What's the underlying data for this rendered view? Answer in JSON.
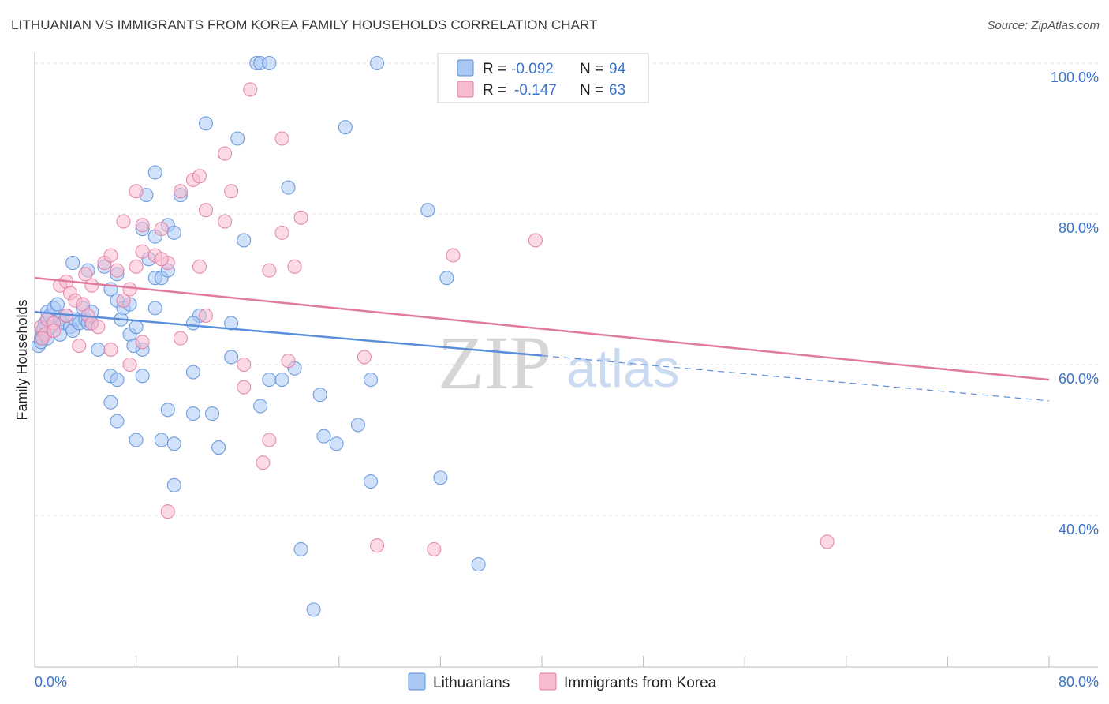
{
  "title": "LITHUANIAN VS IMMIGRANTS FROM KOREA FAMILY HOUSEHOLDS CORRELATION CHART",
  "source": "Source: ZipAtlas.com",
  "watermark": {
    "zip": "ZIP",
    "atlas": "atlas"
  },
  "legend": {
    "r_label": "R =",
    "n_label": "N =",
    "items": [
      {
        "name": "Lithuanians",
        "r": "-0.092",
        "n": "94",
        "fill": "#aac8f4",
        "stroke": "#5b8ed8"
      },
      {
        "name": "Immigrants from Korea",
        "r": "-0.147",
        "n": "63",
        "fill": "#f7bcd0",
        "stroke": "#e07aa0"
      }
    ]
  },
  "chart_data": {
    "type": "scatter",
    "title": "LITHUANIAN VS IMMIGRANTS FROM KOREA FAMILY HOUSEHOLDS CORRELATION CHART",
    "xlabel": "",
    "ylabel": "Family Households",
    "xlim": [
      0,
      80
    ],
    "ylim": [
      20,
      102
    ],
    "x_tick_labels": [
      {
        "value": 0,
        "label": "0.0%"
      },
      {
        "value": 80,
        "label": "80.0%"
      }
    ],
    "y_tick_labels": [
      {
        "value": 40,
        "label": "40.0%"
      },
      {
        "value": 60,
        "label": "60.0%"
      },
      {
        "value": 80,
        "label": "80.0%"
      },
      {
        "value": 100,
        "label": "100.0%"
      }
    ],
    "series": [
      {
        "name": "Lithuanians",
        "color": "#5b8ed8",
        "fill": "#aac8f4",
        "trend": {
          "x0": 0,
          "y0": 67.0,
          "x1": 40,
          "y1": 61.2,
          "dash_to_x": 80,
          "dash_to_y": 55.2
        },
        "points": [
          [
            0.3,
            62.5
          ],
          [
            0.5,
            63.5
          ],
          [
            0.6,
            64.5
          ],
          [
            0.8,
            65.5
          ],
          [
            1.0,
            67.0
          ],
          [
            1.2,
            66.5
          ],
          [
            1.3,
            65.0
          ],
          [
            1.5,
            67.5
          ],
          [
            1.8,
            68.0
          ],
          [
            2.0,
            66.0
          ],
          [
            2.2,
            65.5
          ],
          [
            2.5,
            66.5
          ],
          [
            2.8,
            65.0
          ],
          [
            3.0,
            64.5
          ],
          [
            3.2,
            66.0
          ],
          [
            3.5,
            65.5
          ],
          [
            3.8,
            67.5
          ],
          [
            4.0,
            66.0
          ],
          [
            4.2,
            65.5
          ],
          [
            4.5,
            67.0
          ],
          [
            4.5,
            65.5
          ],
          [
            3.0,
            73.5
          ],
          [
            4.2,
            72.5
          ],
          [
            5.5,
            73.0
          ],
          [
            6.0,
            70.0
          ],
          [
            6.5,
            68.5
          ],
          [
            7.0,
            67.5
          ],
          [
            6.8,
            66.0
          ],
          [
            7.5,
            64.0
          ],
          [
            8.5,
            62.0
          ],
          [
            9.0,
            74.0
          ],
          [
            9.5,
            71.5
          ],
          [
            10.0,
            71.5
          ],
          [
            10.5,
            72.5
          ],
          [
            8.5,
            78.0
          ],
          [
            9.5,
            77.0
          ],
          [
            10.5,
            78.5
          ],
          [
            11.0,
            77.5
          ],
          [
            8.8,
            82.5
          ],
          [
            9.5,
            85.5
          ],
          [
            11.5,
            82.5
          ],
          [
            13.0,
            66.5
          ],
          [
            12.5,
            65.5
          ],
          [
            15.5,
            65.5
          ],
          [
            15.5,
            61.0
          ],
          [
            12.5,
            59.0
          ],
          [
            6.0,
            58.5
          ],
          [
            6.5,
            58.0
          ],
          [
            8.5,
            58.5
          ],
          [
            10.5,
            54.0
          ],
          [
            6.0,
            55.0
          ],
          [
            6.5,
            52.5
          ],
          [
            8.0,
            50.0
          ],
          [
            10.0,
            50.0
          ],
          [
            11.0,
            49.5
          ],
          [
            12.5,
            53.5
          ],
          [
            14.0,
            53.5
          ],
          [
            14.5,
            49.0
          ],
          [
            17.8,
            54.5
          ],
          [
            18.5,
            58.0
          ],
          [
            19.5,
            58.0
          ],
          [
            20.5,
            59.5
          ],
          [
            22.5,
            56.0
          ],
          [
            22.8,
            50.5
          ],
          [
            23.8,
            49.5
          ],
          [
            25.5,
            52.0
          ],
          [
            26.5,
            58.0
          ],
          [
            26.5,
            44.5
          ],
          [
            32.0,
            45.0
          ],
          [
            35.0,
            33.5
          ],
          [
            22.0,
            27.5
          ],
          [
            21.0,
            35.5
          ],
          [
            11.0,
            44.0
          ],
          [
            16.5,
            76.5
          ],
          [
            20.0,
            83.5
          ],
          [
            13.5,
            92.0
          ],
          [
            16.0,
            90.0
          ],
          [
            24.5,
            91.5
          ],
          [
            17.5,
            100.0
          ],
          [
            17.8,
            100.0
          ],
          [
            18.5,
            100.0
          ],
          [
            27.0,
            100.0
          ],
          [
            31.0,
            80.5
          ],
          [
            32.5,
            71.5
          ],
          [
            6.5,
            72.0
          ],
          [
            7.5,
            68.0
          ],
          [
            8.0,
            65.0
          ],
          [
            2.0,
            64.0
          ],
          [
            0.5,
            63.0
          ],
          [
            1.0,
            63.5
          ],
          [
            0.7,
            64.8
          ],
          [
            5.0,
            62.0
          ],
          [
            9.5,
            67.5
          ],
          [
            7.8,
            62.5
          ]
        ]
      },
      {
        "name": "Immigrants from Korea",
        "color": "#e07aa0",
        "fill": "#f7bcd0",
        "trend": {
          "x0": 0,
          "y0": 71.5,
          "x1": 80,
          "y1": 58.0
        },
        "points": [
          [
            0.5,
            65.0
          ],
          [
            0.8,
            64.0
          ],
          [
            1.0,
            66.0
          ],
          [
            1.5,
            65.5
          ],
          [
            2.0,
            70.5
          ],
          [
            2.5,
            71.0
          ],
          [
            2.8,
            69.5
          ],
          [
            3.2,
            68.5
          ],
          [
            3.8,
            68.0
          ],
          [
            4.2,
            66.5
          ],
          [
            4.5,
            65.5
          ],
          [
            4.0,
            72.0
          ],
          [
            4.5,
            70.5
          ],
          [
            5.5,
            73.5
          ],
          [
            6.0,
            74.5
          ],
          [
            6.5,
            72.5
          ],
          [
            7.0,
            68.5
          ],
          [
            7.5,
            70.0
          ],
          [
            8.0,
            73.0
          ],
          [
            8.5,
            75.0
          ],
          [
            9.5,
            74.5
          ],
          [
            10.5,
            73.5
          ],
          [
            10.0,
            74.0
          ],
          [
            7.0,
            79.0
          ],
          [
            8.5,
            78.5
          ],
          [
            10.0,
            78.0
          ],
          [
            8.0,
            83.0
          ],
          [
            11.5,
            83.0
          ],
          [
            12.5,
            84.5
          ],
          [
            13.0,
            85.0
          ],
          [
            13.5,
            80.5
          ],
          [
            15.0,
            79.0
          ],
          [
            15.5,
            83.0
          ],
          [
            13.0,
            73.0
          ],
          [
            18.5,
            72.5
          ],
          [
            19.5,
            77.5
          ],
          [
            20.5,
            73.0
          ],
          [
            21.0,
            79.5
          ],
          [
            15.0,
            88.0
          ],
          [
            19.5,
            90.0
          ],
          [
            17.0,
            96.5
          ],
          [
            13.5,
            66.5
          ],
          [
            11.5,
            63.5
          ],
          [
            8.5,
            63.0
          ],
          [
            7.5,
            60.0
          ],
          [
            6.0,
            62.0
          ],
          [
            16.5,
            60.0
          ],
          [
            16.5,
            57.0
          ],
          [
            20.0,
            60.5
          ],
          [
            26.0,
            61.0
          ],
          [
            18.5,
            50.0
          ],
          [
            18.0,
            47.0
          ],
          [
            10.5,
            40.5
          ],
          [
            27.0,
            36.0
          ],
          [
            31.5,
            35.5
          ],
          [
            62.5,
            36.5
          ],
          [
            39.5,
            76.5
          ],
          [
            33.0,
            74.5
          ],
          [
            1.5,
            64.5
          ],
          [
            0.6,
            63.5
          ],
          [
            2.5,
            66.5
          ],
          [
            3.5,
            62.5
          ],
          [
            5.0,
            65.0
          ]
        ]
      }
    ]
  }
}
